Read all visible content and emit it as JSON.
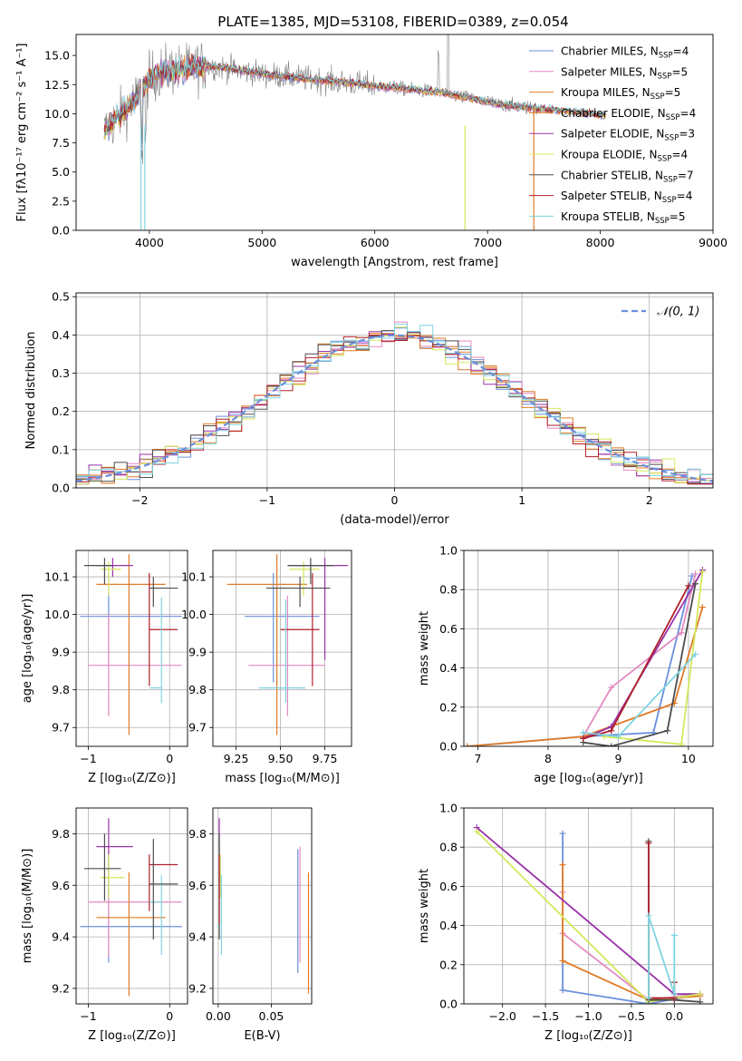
{
  "title": "PLATE=1385, MJD=53108, FIBERID=0389, z=0.054",
  "models": [
    {
      "key": "chabrier_miles",
      "name": "Chabrier MILES",
      "nssp": "4",
      "color": "#6a8fdc"
    },
    {
      "key": "salpeter_miles",
      "name": "Salpeter MILES",
      "nssp": "5",
      "color": "#e38ac0"
    },
    {
      "key": "kroupa_miles",
      "name": "Kroupa MILES",
      "nssp": "5",
      "color": "#e07b26"
    },
    {
      "key": "chabrier_elodie",
      "name": "Chabrier ELODIE",
      "nssp": "4",
      "color": "#e07b26"
    },
    {
      "key": "salpeter_elodie",
      "name": "Salpeter ELODIE",
      "nssp": "3",
      "color": "#9932a8"
    },
    {
      "key": "kroupa_elodie",
      "name": "Kroupa ELODIE",
      "nssp": "4",
      "color": "#d4e85a"
    },
    {
      "key": "chabrier_stelib",
      "name": "Chabrier STELIB",
      "nssp": "7",
      "color": "#4d4d4d"
    },
    {
      "key": "salpeter_stelib",
      "name": "Salpeter STELIB",
      "nssp": "4",
      "color": "#b01f2a"
    },
    {
      "key": "kroupa_stelib",
      "name": "Kroupa STELIB",
      "nssp": "5",
      "color": "#7fd4e0"
    }
  ],
  "chart_data": [
    {
      "id": "spectrum",
      "type": "line",
      "xlabel": "wavelength [Angstrom, rest frame]",
      "ylabel": "Flux [fλ10⁻¹⁷ erg cm⁻² s⁻¹ A⁻¹]",
      "xlim": [
        3350,
        9000
      ],
      "ylim": [
        0,
        16.8
      ],
      "xticks": [
        4000,
        5000,
        6000,
        7000,
        8000,
        9000
      ],
      "yticks": [
        0.0,
        2.5,
        5.0,
        7.5,
        10.0,
        12.5,
        15.0
      ],
      "ytick_labels": [
        "0.0",
        "2.5",
        "5.0",
        "7.5",
        "10.0",
        "12.5",
        "15.0"
      ],
      "data_color": "#808080",
      "continuum_x": [
        3600,
        3700,
        3800,
        3900,
        4000,
        4100,
        4200,
        4300,
        4400,
        4500,
        4600,
        4700,
        4800,
        4900,
        5000,
        5100,
        5200,
        5300,
        5400,
        5500,
        5600,
        5700,
        5800,
        5900,
        6000,
        6100,
        6200,
        6300,
        6400,
        6500,
        6600,
        6700,
        6800,
        6900,
        7000,
        7100,
        7200,
        7300,
        7400,
        7500,
        7600,
        7700,
        7800,
        7900,
        8000,
        8100,
        8200,
        8300,
        8400,
        8500,
        8600,
        8700,
        8800,
        8900
      ],
      "continuum_y": [
        8.5,
        9.5,
        10.5,
        11.5,
        13.0,
        13.6,
        13.8,
        13.7,
        14.0,
        14.1,
        14.0,
        13.9,
        13.7,
        13.6,
        13.4,
        13.3,
        13.2,
        13.1,
        13.0,
        12.9,
        12.8,
        12.7,
        12.6,
        12.5,
        12.4,
        12.3,
        12.2,
        12.1,
        12.0,
        11.9,
        11.8,
        11.6,
        11.4,
        11.2,
        11.0,
        10.8,
        10.7,
        10.6,
        10.5,
        10.4,
        10.3,
        10.2,
        10.1,
        10.0,
        9.9,
        9.8,
        9.7,
        9.6,
        9.5,
        9.4,
        9.3,
        9.2,
        9.1,
        9.0
      ],
      "model_xmax": 8050,
      "data_xmax": 7450,
      "legend": "upper right"
    },
    {
      "id": "residuals",
      "type": "step",
      "xlabel": "(data-model)/error",
      "ylabel": "Normed distribution",
      "xlim": [
        -2.5,
        2.5
      ],
      "ylim": [
        0,
        0.51
      ],
      "xticks": [
        -2,
        -1,
        0,
        1,
        2
      ],
      "yticks": [
        0.0,
        0.1,
        0.2,
        0.3,
        0.4,
        0.5
      ],
      "ytick_labels": [
        "0.0",
        "0.1",
        "0.2",
        "0.3",
        "0.4",
        "0.5"
      ],
      "bins": 50,
      "gaussian_label": "𝒩(0, 1)",
      "gaussian_color": "#6a8fdc",
      "legend": "upper right"
    },
    {
      "id": "age_vs_Z",
      "type": "errorbar",
      "xlabel": "Z [log₁₀(Z/Z⊙)]",
      "ylabel": "age  [log₁₀(age/yr)]",
      "xlim": [
        -1.15,
        0.22
      ],
      "ylim": [
        9.65,
        10.17
      ],
      "xticks": [
        -1,
        0
      ],
      "xtick_labels": [
        "−1",
        "0"
      ],
      "yticks": [
        9.7,
        9.8,
        9.9,
        10.0,
        10.1
      ],
      "points": [
        {
          "m": 0,
          "x": -0.75,
          "y": 9.995,
          "xlo": -1.1,
          "xhi": 0.15,
          "ylo": 9.87,
          "yhi": 10.11
        },
        {
          "m": 1,
          "x": -0.75,
          "y": 9.865,
          "xlo": -1.0,
          "xhi": 0.15,
          "ylo": 9.73,
          "yhi": 10.0
        },
        {
          "m": 2,
          "x": -0.5,
          "y": 10.08,
          "xlo": -0.9,
          "xhi": -0.05,
          "ylo": 9.68,
          "yhi": 10.16
        },
        {
          "m": 4,
          "x": -0.7,
          "y": 10.13,
          "xlo": -0.9,
          "xhi": -0.45,
          "ylo": 10.1,
          "yhi": 10.15
        },
        {
          "m": 5,
          "x": -0.75,
          "y": 10.12,
          "xlo": -0.85,
          "xhi": -0.6,
          "ylo": 10.05,
          "yhi": 10.14
        },
        {
          "m": 6,
          "x": -0.8,
          "y": 10.13,
          "xlo": -1.05,
          "xhi": -0.7,
          "ylo": 10.08,
          "yhi": 10.15
        },
        {
          "m": 7,
          "x": -0.25,
          "y": 9.96,
          "xlo": -0.25,
          "xhi": 0.1,
          "ylo": 9.81,
          "yhi": 10.11
        },
        {
          "m": 8,
          "x": -0.1,
          "y": 9.805,
          "xlo": -0.25,
          "xhi": -0.1,
          "ylo": 9.765,
          "yhi": 10.045
        },
        {
          "m": 6,
          "x": -0.2,
          "y": 10.07,
          "xlo": -0.25,
          "xhi": 0.1,
          "ylo": 10.02,
          "yhi": 10.1
        }
      ]
    },
    {
      "id": "age_vs_mass",
      "type": "errorbar",
      "xlabel": "mass [log₁₀(M/M⊙)]",
      "ylabel": "",
      "xlim": [
        9.12,
        9.9
      ],
      "ylim": [
        9.65,
        10.17
      ],
      "xticks": [
        9.25,
        9.5,
        9.75
      ],
      "xtick_labels": [
        "9.25",
        "9.50",
        "9.75"
      ],
      "yticks": [
        9.7,
        9.8,
        9.9,
        10.0,
        10.1
      ],
      "points": [
        {
          "m": 0,
          "x": 9.46,
          "y": 9.995,
          "xlo": 9.3,
          "xhi": 9.72,
          "ylo": 9.82,
          "yhi": 10.11
        },
        {
          "m": 1,
          "x": 9.54,
          "y": 9.865,
          "xlo": 9.32,
          "xhi": 9.75,
          "ylo": 9.73,
          "yhi": 10.05
        },
        {
          "m": 2,
          "x": 9.48,
          "y": 10.08,
          "xlo": 9.2,
          "xhi": 9.65,
          "ylo": 9.68,
          "yhi": 10.16
        },
        {
          "m": 4,
          "x": 9.75,
          "y": 10.13,
          "xlo": 9.55,
          "xhi": 9.88,
          "ylo": 9.88,
          "yhi": 10.15
        },
        {
          "m": 5,
          "x": 9.63,
          "y": 10.12,
          "xlo": 9.55,
          "xhi": 9.72,
          "ylo": 10.05,
          "yhi": 10.14
        },
        {
          "m": 6,
          "x": 9.67,
          "y": 10.13,
          "xlo": 9.54,
          "xhi": 9.8,
          "ylo": 10.08,
          "yhi": 10.15
        },
        {
          "m": 7,
          "x": 9.68,
          "y": 9.96,
          "xlo": 9.5,
          "xhi": 9.72,
          "ylo": 9.81,
          "yhi": 10.11
        },
        {
          "m": 8,
          "x": 9.53,
          "y": 9.805,
          "xlo": 9.38,
          "xhi": 9.64,
          "ylo": 9.765,
          "yhi": 10.04
        },
        {
          "m": 6,
          "x": 9.61,
          "y": 10.07,
          "xlo": 9.42,
          "xhi": 9.78,
          "ylo": 10.02,
          "yhi": 10.1
        }
      ]
    },
    {
      "id": "weight_vs_age",
      "type": "line",
      "xlabel": "age  [log₁₀(age/yr)]",
      "ylabel": "mass weight",
      "xlim": [
        6.8,
        10.35
      ],
      "ylim": [
        0,
        1
      ],
      "xticks": [
        7,
        8,
        9,
        10
      ],
      "yticks": [
        0.0,
        0.2,
        0.4,
        0.6,
        0.8,
        1.0
      ],
      "series": [
        {
          "m": 0,
          "x": [
            6.85,
            8.5,
            9.5,
            10.05
          ],
          "y": [
            0.0,
            0.05,
            0.07,
            0.87
          ]
        },
        {
          "m": 1,
          "x": [
            8.5,
            8.9,
            9.9,
            10.1
          ],
          "y": [
            0.05,
            0.3,
            0.58,
            0.88
          ]
        },
        {
          "m": 2,
          "x": [
            6.85,
            8.5,
            9.8,
            10.2
          ],
          "y": [
            0.0,
            0.05,
            0.22,
            0.71
          ]
        },
        {
          "m": 4,
          "x": [
            8.5,
            8.9,
            10.2
          ],
          "y": [
            0.04,
            0.1,
            0.9
          ]
        },
        {
          "m": 5,
          "x": [
            8.8,
            9.9,
            10.2
          ],
          "y": [
            0.05,
            0.01,
            0.89
          ]
        },
        {
          "m": 6,
          "x": [
            8.5,
            8.9,
            9.7,
            10.1
          ],
          "y": [
            0.02,
            0.0,
            0.08,
            0.83
          ]
        },
        {
          "m": 7,
          "x": [
            8.5,
            8.9,
            10.0
          ],
          "y": [
            0.04,
            0.08,
            0.82
          ]
        },
        {
          "m": 8,
          "x": [
            8.5,
            9.0,
            10.1
          ],
          "y": [
            0.07,
            0.05,
            0.47
          ]
        }
      ]
    },
    {
      "id": "mass_vs_Z",
      "type": "errorbar",
      "xlabel": "Z [log₁₀(Z/Z⊙)]",
      "ylabel": "mass [log₁₀(M/M⊙)]",
      "xlim": [
        -1.15,
        0.22
      ],
      "ylim": [
        9.14,
        9.9
      ],
      "xticks": [
        -1,
        0
      ],
      "xtick_labels": [
        "−1",
        "0"
      ],
      "yticks": [
        9.2,
        9.4,
        9.6,
        9.8
      ],
      "points": [
        {
          "m": 0,
          "x": -0.75,
          "y": 9.44,
          "xlo": -1.1,
          "xhi": 0.15,
          "ylo": 9.3,
          "yhi": 9.72
        },
        {
          "m": 1,
          "x": -0.75,
          "y": 9.535,
          "xlo": -1.0,
          "xhi": 0.15,
          "ylo": 9.32,
          "yhi": 9.75
        },
        {
          "m": 2,
          "x": -0.5,
          "y": 9.475,
          "xlo": -0.9,
          "xhi": -0.05,
          "ylo": 9.17,
          "yhi": 9.65
        },
        {
          "m": 4,
          "x": -0.75,
          "y": 9.75,
          "xlo": -0.9,
          "xhi": -0.45,
          "ylo": 9.55,
          "yhi": 9.86
        },
        {
          "m": 5,
          "x": -0.75,
          "y": 9.63,
          "xlo": -0.85,
          "xhi": -0.55,
          "ylo": 9.55,
          "yhi": 9.72
        },
        {
          "m": 6,
          "x": -0.8,
          "y": 9.665,
          "xlo": -1.05,
          "xhi": -0.6,
          "ylo": 9.54,
          "yhi": 9.8
        },
        {
          "m": 7,
          "x": -0.25,
          "y": 9.68,
          "xlo": -0.25,
          "xhi": 0.1,
          "ylo": 9.5,
          "yhi": 9.72
        },
        {
          "m": 8,
          "x": -0.1,
          "y": 9.535,
          "xlo": -0.25,
          "xhi": -0.1,
          "ylo": 9.33,
          "yhi": 9.64
        },
        {
          "m": 6,
          "x": -0.2,
          "y": 9.605,
          "xlo": -0.25,
          "xhi": 0.1,
          "ylo": 9.39,
          "yhi": 9.78
        }
      ]
    },
    {
      "id": "mass_vs_ebv",
      "type": "errorbar",
      "xlabel": "E(B-V)",
      "ylabel": "",
      "xlim": [
        -0.005,
        0.088
      ],
      "ylim": [
        9.14,
        9.9
      ],
      "xticks": [
        0.0,
        0.05
      ],
      "xtick_labels": [
        "0.00",
        "0.05"
      ],
      "yticks": [
        9.2,
        9.4,
        9.6,
        9.8
      ],
      "points": [
        {
          "m": 0,
          "x": 0.075,
          "y": 9.5,
          "xlo": 0.075,
          "xhi": 0.075,
          "ylo": 9.26,
          "yhi": 9.74
        },
        {
          "m": 1,
          "x": 0.077,
          "y": 9.48,
          "xlo": 0.077,
          "xhi": 0.077,
          "ylo": 9.3,
          "yhi": 9.75
        },
        {
          "m": 2,
          "x": 0.085,
          "y": 9.4,
          "xlo": 0.085,
          "xhi": 0.085,
          "ylo": 9.18,
          "yhi": 9.65
        },
        {
          "m": 4,
          "x": 0.001,
          "y": 9.75,
          "xlo": 0.001,
          "xhi": 0.001,
          "ylo": 9.6,
          "yhi": 9.86
        },
        {
          "m": 5,
          "x": 0.002,
          "y": 9.63,
          "xlo": 0.002,
          "xhi": 0.002,
          "ylo": 9.55,
          "yhi": 9.72
        },
        {
          "m": 6,
          "x": 0.001,
          "y": 9.6,
          "xlo": 0.001,
          "xhi": 0.001,
          "ylo": 9.39,
          "yhi": 9.8
        },
        {
          "m": 7,
          "x": 0.001,
          "y": 9.62,
          "xlo": 0.001,
          "xhi": 0.001,
          "ylo": 9.45,
          "yhi": 9.72
        },
        {
          "m": 8,
          "x": 0.003,
          "y": 9.5,
          "xlo": 0.003,
          "xhi": 0.003,
          "ylo": 9.33,
          "yhi": 9.64
        }
      ]
    },
    {
      "id": "weight_vs_Z",
      "type": "line",
      "xlabel": "Z [log₁₀(Z/Z⊙)]",
      "ylabel": "mass weight",
      "xlim": [
        -2.45,
        0.45
      ],
      "ylim": [
        0,
        1
      ],
      "xticks": [
        -2.0,
        -1.5,
        -1.0,
        -0.5,
        0.0
      ],
      "xtick_labels": [
        "−2.0",
        "−1.5",
        "−1.0",
        "−0.5",
        "0.0"
      ],
      "yticks": [
        0.0,
        0.2,
        0.4,
        0.6,
        0.8,
        1.0
      ],
      "series": [
        {
          "m": 0,
          "x": [
            -1.3,
            -1.3,
            -0.3,
            0.3
          ],
          "y": [
            0.87,
            0.07,
            0.0,
            0.05
          ]
        },
        {
          "m": 1,
          "x": [
            -1.3,
            -1.3,
            -0.3,
            0.3
          ],
          "y": [
            0.57,
            0.36,
            0.02,
            0.05
          ]
        },
        {
          "m": 2,
          "x": [
            -1.3,
            -1.3,
            -0.3,
            0.3
          ],
          "y": [
            0.71,
            0.22,
            0.02,
            0.04
          ]
        },
        {
          "m": 4,
          "x": [
            -2.3,
            0.0,
            0.3
          ],
          "y": [
            0.9,
            0.05,
            0.05
          ]
        },
        {
          "m": 5,
          "x": [
            -2.3,
            -0.3,
            0.3
          ],
          "y": [
            0.88,
            0.01,
            0.05
          ]
        },
        {
          "m": 6,
          "x": [
            -0.3,
            -0.3,
            0.0,
            0.3
          ],
          "y": [
            0.83,
            0.02,
            0.02,
            0.01
          ]
        },
        {
          "m": 7,
          "x": [
            -0.3,
            -0.3,
            0.0,
            0.0
          ],
          "y": [
            0.82,
            0.03,
            0.03,
            0.11
          ]
        },
        {
          "m": 8,
          "x": [
            -0.3,
            -0.3,
            0.0,
            0.0
          ],
          "y": [
            0.03,
            0.45,
            0.05,
            0.35
          ]
        }
      ]
    }
  ]
}
